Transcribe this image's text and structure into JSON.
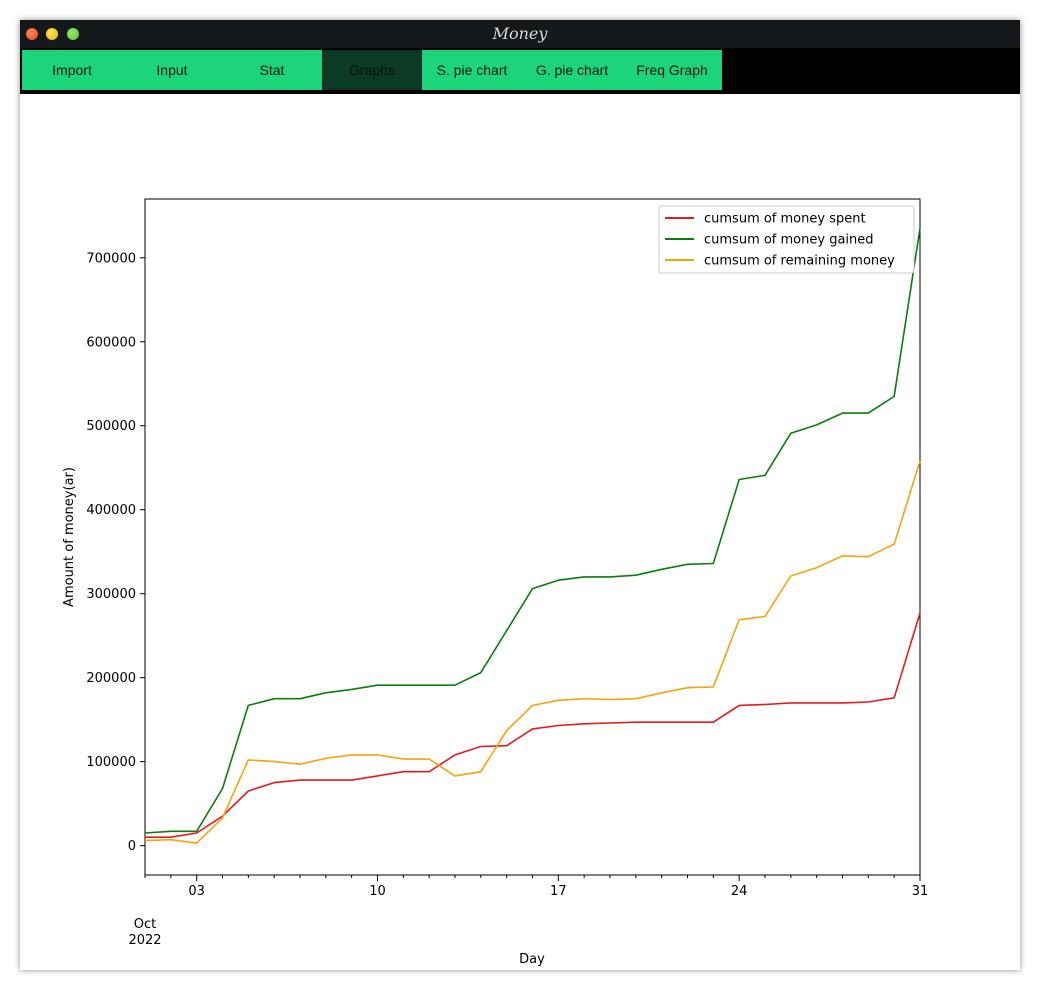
{
  "window": {
    "title": "Money"
  },
  "menu": {
    "items": [
      "Import",
      "Input",
      "Stat",
      "Graphs",
      "S. pie chart",
      "G. pie chart",
      "Freq Graph"
    ],
    "active": "Graphs"
  },
  "chart_data": {
    "type": "line",
    "xlabel": "Day",
    "ylabel": "Amount of money(ar)",
    "x": [
      1,
      2,
      3,
      4,
      5,
      6,
      7,
      8,
      9,
      10,
      11,
      12,
      13,
      14,
      15,
      16,
      17,
      18,
      19,
      20,
      21,
      22,
      23,
      24,
      25,
      26,
      27,
      28,
      29,
      30,
      31
    ],
    "xlim": [
      1,
      31
    ],
    "ylim": [
      -35000,
      770000
    ],
    "xticks": [
      3,
      10,
      17,
      24,
      31
    ],
    "xtick_labels": [
      "03",
      "10",
      "17",
      "24",
      "31"
    ],
    "x_origin_label": [
      "Oct",
      "2022"
    ],
    "yticks": [
      0,
      100000,
      200000,
      300000,
      400000,
      500000,
      600000,
      700000
    ],
    "ytick_labels": [
      "0",
      "100000",
      "200000",
      "300000",
      "400000",
      "500000",
      "600000",
      "700000"
    ],
    "legend_position": "top-right",
    "series": [
      {
        "name": "cumsum of money spent",
        "color": "#e41a1c",
        "values": [
          10000,
          10000,
          15000,
          35000,
          65000,
          75000,
          78000,
          78000,
          78000,
          83000,
          88000,
          88000,
          108000,
          118000,
          119000,
          139000,
          143000,
          145000,
          146000,
          147000,
          147000,
          147000,
          147000,
          167000,
          168000,
          170000,
          170000,
          170000,
          171000,
          176000,
          277000
        ]
      },
      {
        "name": "cumsum of money gained",
        "color": "#0b7d0b",
        "values": [
          15000,
          17000,
          17000,
          68000,
          167000,
          175000,
          175000,
          182000,
          186000,
          191000,
          191000,
          191000,
          191000,
          206000,
          256000,
          306000,
          316000,
          320000,
          320000,
          322000,
          329000,
          335000,
          336000,
          436000,
          441000,
          491000,
          501000,
          515000,
          515000,
          535000,
          735000
        ]
      },
      {
        "name": "cumsum of remaining money",
        "color": "#f5a30f",
        "values": [
          6000,
          7000,
          3000,
          33000,
          102000,
          100000,
          97000,
          104000,
          108000,
          108000,
          103000,
          103000,
          83000,
          88000,
          137000,
          167000,
          173000,
          175000,
          174000,
          175000,
          182000,
          188000,
          189000,
          269000,
          273000,
          321000,
          331000,
          345000,
          344000,
          359000,
          458000
        ]
      }
    ]
  }
}
